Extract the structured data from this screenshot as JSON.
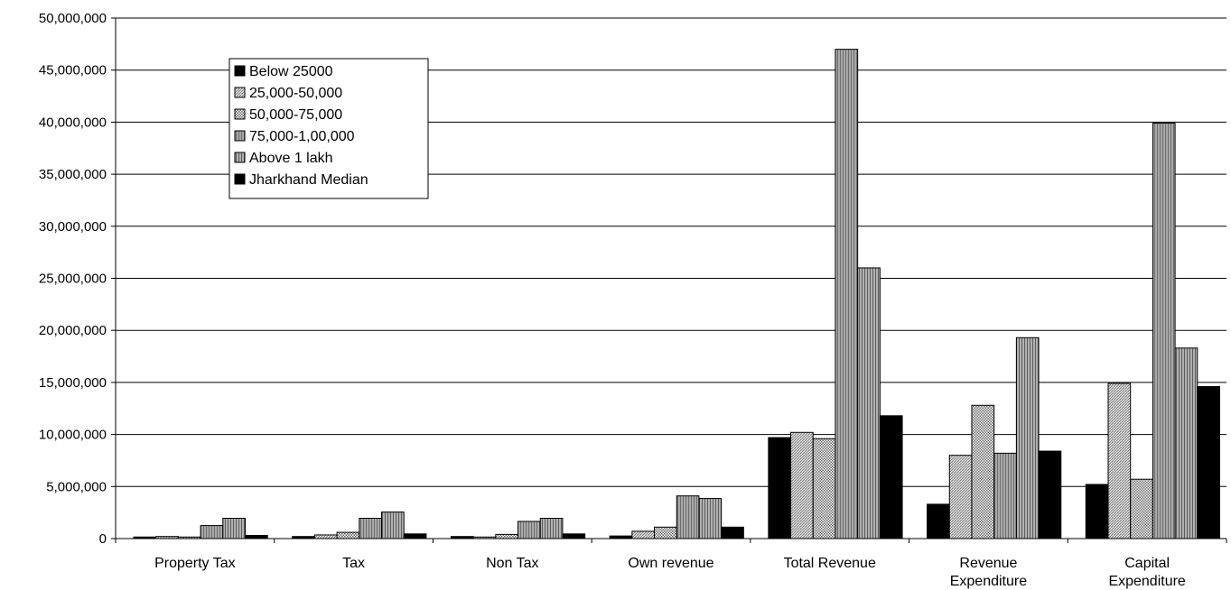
{
  "chart_data": {
    "type": "bar",
    "categories": [
      [
        "Property Tax"
      ],
      [
        "Tax"
      ],
      [
        "Non Tax"
      ],
      [
        "Own revenue"
      ],
      [
        "Total Revenue"
      ],
      [
        "Revenue",
        "Expenditure"
      ],
      [
        "Capital",
        "Expenditure"
      ]
    ],
    "series": [
      {
        "name": "Below  25000",
        "values": [
          150000,
          200000,
          200000,
          250000,
          9700000,
          3300000,
          5200000
        ]
      },
      {
        "name": "25,000-50,000",
        "values": [
          200000,
          350000,
          150000,
          700000,
          10200000,
          8000000,
          14900000
        ]
      },
      {
        "name": "50,000-75,000",
        "values": [
          150000,
          600000,
          400000,
          1100000,
          9600000,
          12800000,
          5700000
        ]
      },
      {
        "name": "75,000-1,00,000",
        "values": [
          1250000,
          1950000,
          1650000,
          4100000,
          47000000,
          8200000,
          39900000
        ]
      },
      {
        "name": "Above 1 lakh",
        "values": [
          1950000,
          2550000,
          1950000,
          3850000,
          26000000,
          19300000,
          18300000
        ]
      },
      {
        "name": "Jharkhand Median",
        "values": [
          300000,
          450000,
          450000,
          1100000,
          11800000,
          8400000,
          14600000
        ]
      }
    ],
    "ylim": [
      0,
      50000000
    ],
    "yticks": [
      0,
      5000000,
      10000000,
      15000000,
      20000000,
      25000000,
      30000000,
      35000000,
      40000000,
      45000000,
      50000000
    ],
    "ytick_labels": [
      "0",
      "5,000,000",
      "10,000,000",
      "15,000,000",
      "20,000,000",
      "25,000,000",
      "30,000,000",
      "35,000,000",
      "40,000,000",
      "45,000,000",
      "50,000,000"
    ],
    "grid": true,
    "legend_position": "top-left",
    "series_fills": [
      "#000000",
      "pattern-diagonal",
      "pattern-checker",
      "pattern-vertical-gray",
      "pattern-vertical-gray",
      "#000000"
    ]
  }
}
